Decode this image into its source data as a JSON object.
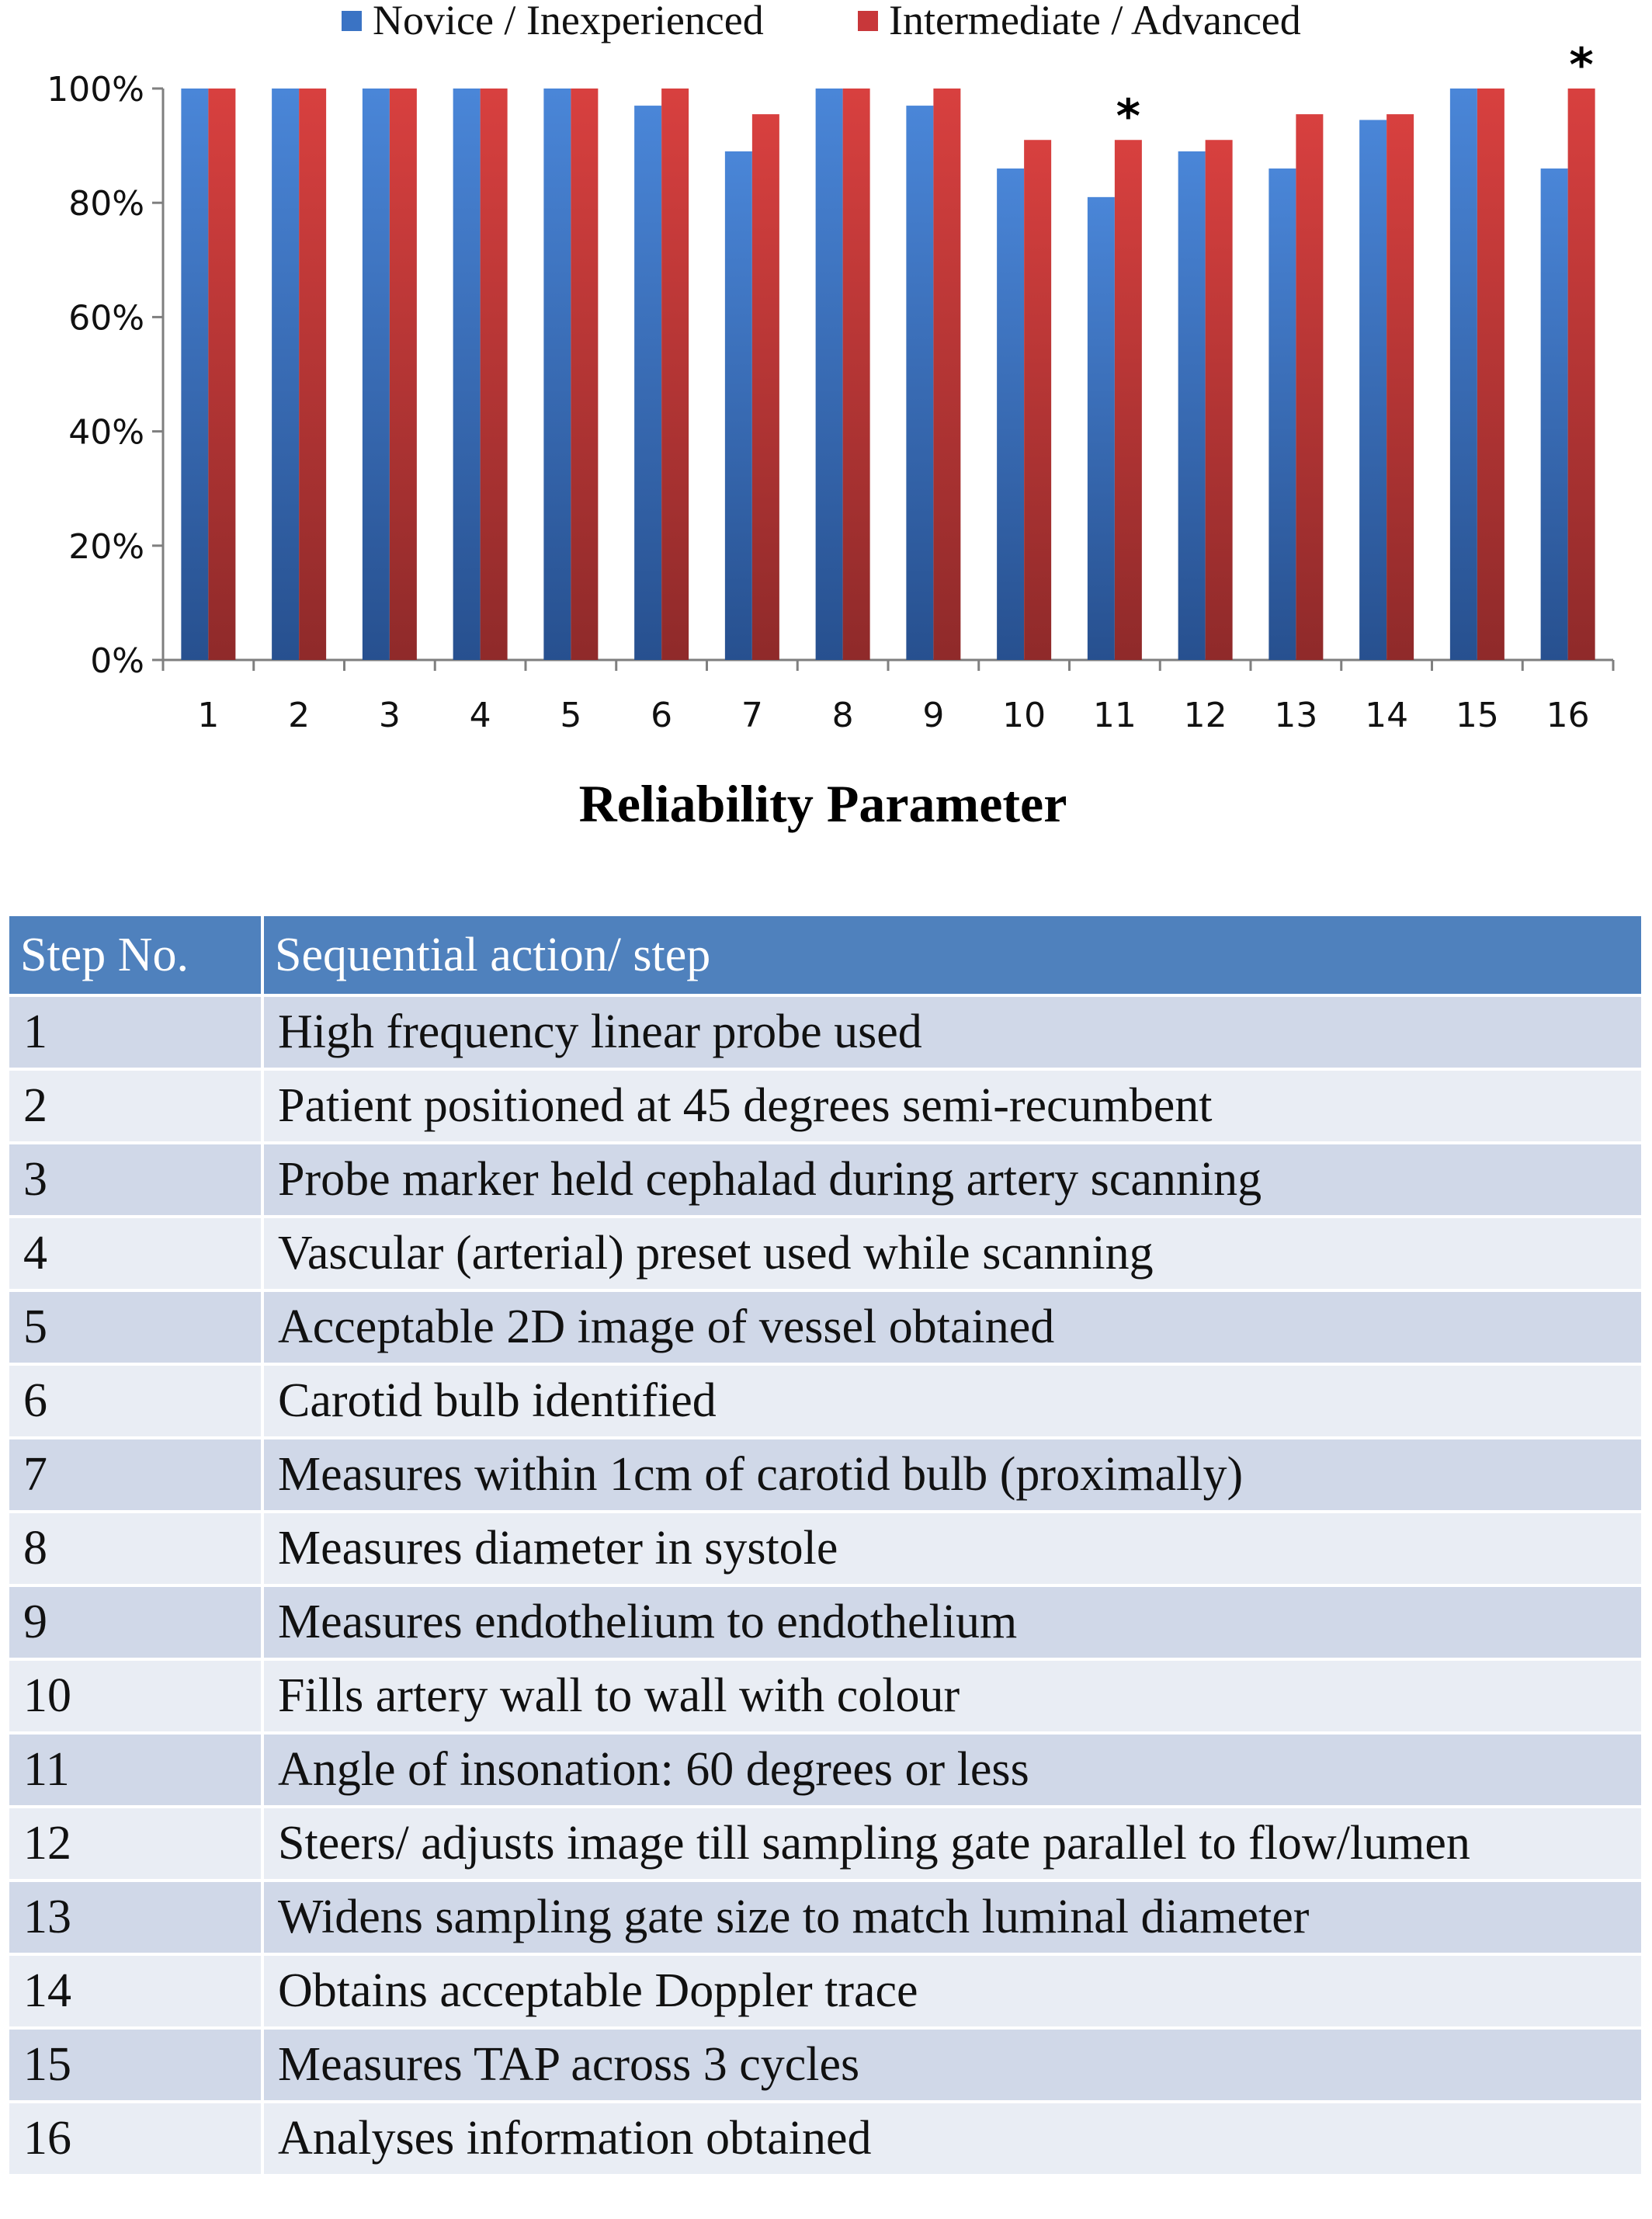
{
  "chart_data": {
    "type": "bar",
    "categories": [
      "1",
      "2",
      "3",
      "4",
      "5",
      "6",
      "7",
      "8",
      "9",
      "10",
      "11",
      "12",
      "13",
      "14",
      "15",
      "16"
    ],
    "series": [
      {
        "name": "Novice / Inexperienced",
        "color": "#3a73c4",
        "values": [
          100,
          100,
          100,
          100,
          100,
          97,
          89,
          100,
          97,
          86,
          81,
          89,
          86,
          94.5,
          100,
          86
        ]
      },
      {
        "name": "Intermediate / Advanced",
        "color": "#c8373a",
        "values": [
          100,
          100,
          100,
          100,
          100,
          100,
          95.5,
          100,
          100,
          91,
          91,
          91,
          95.5,
          95.5,
          100,
          100
        ]
      }
    ],
    "ylim": [
      0,
      100
    ],
    "yticks": [
      "0%",
      "20%",
      "40%",
      "60%",
      "80%",
      "100%"
    ],
    "ytick_values": [
      0,
      20,
      40,
      60,
      80,
      100
    ],
    "xlabel": "Reliability Parameter",
    "ylabel": "",
    "grid": false,
    "legend_position": "top",
    "annotations": [
      {
        "text": "*",
        "category": "11",
        "series": 1
      },
      {
        "text": "*",
        "category": "16",
        "series": 1
      }
    ]
  },
  "table": {
    "headers": [
      "Step No.",
      "Sequential action/ step"
    ],
    "rows": [
      [
        "1",
        "High frequency linear probe used"
      ],
      [
        "2",
        "Patient positioned at 45 degrees semi-recumbent"
      ],
      [
        "3",
        "Probe marker held cephalad during artery scanning"
      ],
      [
        "4",
        "Vascular (arterial) preset used while scanning"
      ],
      [
        "5",
        "Acceptable 2D image of vessel obtained"
      ],
      [
        "6",
        "Carotid bulb identified"
      ],
      [
        "7",
        "Measures within 1cm of carotid bulb (proximally)"
      ],
      [
        "8",
        "Measures diameter in systole"
      ],
      [
        "9",
        "Measures endothelium to endothelium"
      ],
      [
        "10",
        "Fills artery wall to wall with colour"
      ],
      [
        "11",
        "Angle of insonation: 60 degrees or less"
      ],
      [
        "12",
        "Steers/ adjusts image till sampling gate parallel to flow/lumen"
      ],
      [
        "13",
        "Widens sampling gate size to match luminal diameter"
      ],
      [
        "14",
        "Obtains acceptable Doppler trace"
      ],
      [
        "15",
        "Measures TAP across 3 cycles"
      ],
      [
        "16",
        "Analyses information obtained"
      ]
    ]
  }
}
